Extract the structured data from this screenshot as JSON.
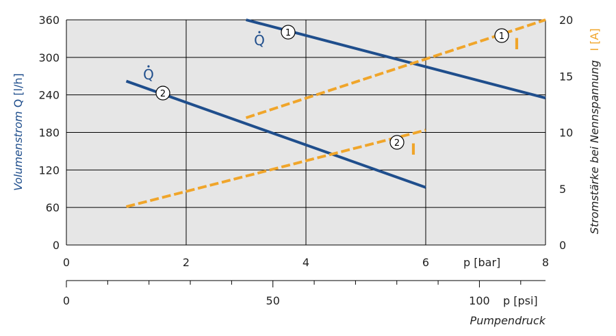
{
  "chart_data": {
    "type": "line",
    "x_unit_label": "p  [bar]",
    "x_ticks": [
      "0",
      "2",
      "4",
      "6",
      "8"
    ],
    "x_range": [
      0,
      8
    ],
    "left_axis": {
      "label_text": "Volumenstrom",
      "label_symbol": "Q",
      "label_unit": "[l/h]",
      "range": [
        0,
        360
      ],
      "ticks": [
        "0",
        "60",
        "120",
        "180",
        "240",
        "300",
        "360"
      ]
    },
    "right_axis": {
      "label_text": "Stromstärke bei Nennspannung",
      "label_unit": "I [A]",
      "range": [
        0,
        20
      ],
      "ticks": [
        "0",
        "5",
        "10",
        "15",
        "20"
      ]
    },
    "psi_axis": {
      "unit_label": "p  [psi]",
      "ticks": [
        "0",
        "50",
        "100"
      ],
      "range": [
        0,
        116
      ]
    },
    "footer_label": "Pumpendruck",
    "grid": true,
    "series": [
      {
        "axis": "left",
        "style": "solid",
        "marker": "1",
        "label": "Q",
        "color": "#1f4e8c",
        "x": [
          3,
          8
        ],
        "y": [
          360,
          235
        ]
      },
      {
        "axis": "left",
        "style": "solid",
        "marker": "2",
        "label": "Q",
        "color": "#1f4e8c",
        "x": [
          1,
          6
        ],
        "y": [
          262,
          92
        ]
      },
      {
        "axis": "right",
        "style": "dashed",
        "marker": "1",
        "label": "I",
        "color": "#f0a52a",
        "x": [
          3,
          8
        ],
        "y": [
          11.3,
          20
        ]
      },
      {
        "axis": "right",
        "style": "dashed",
        "marker": "2",
        "label": "I",
        "color": "#f0a52a",
        "x": [
          1,
          6
        ],
        "y": [
          3.4,
          10.2
        ]
      }
    ]
  }
}
